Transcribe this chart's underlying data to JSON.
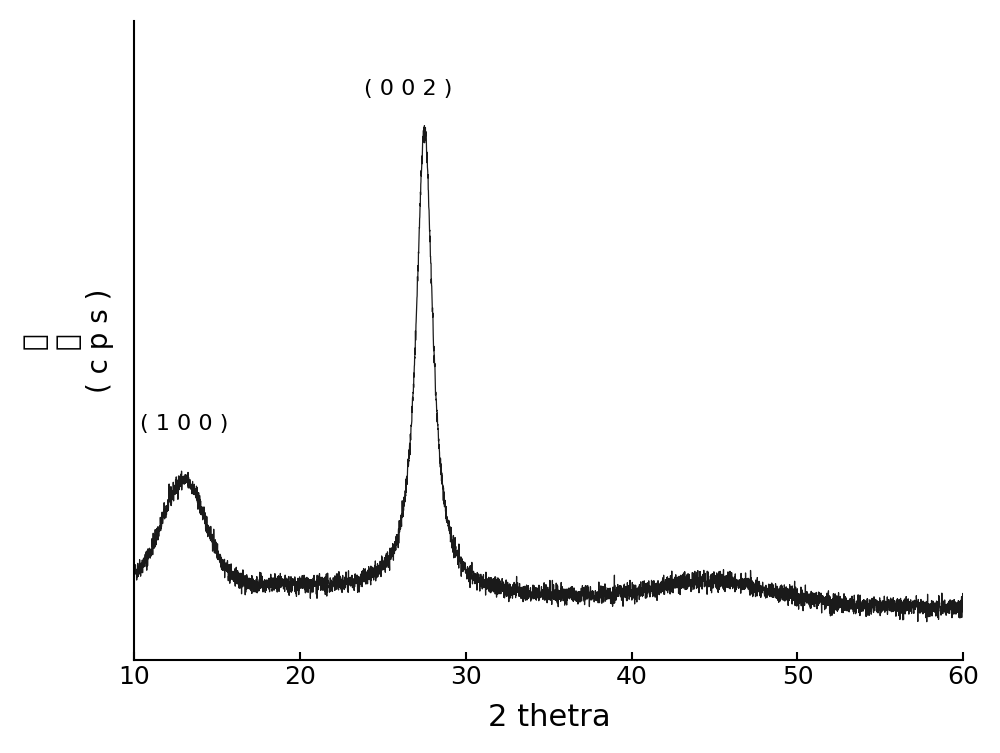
{
  "xlabel": "2 thetra",
  "ylabel_cps": "( c p s )",
  "ylabel_char1": "强",
  "ylabel_char2": "度",
  "xlim": [
    10,
    60
  ],
  "xticks": [
    10,
    20,
    30,
    40,
    50,
    60
  ],
  "xlabel_fontsize": 22,
  "ylabel_fontsize": 20,
  "tick_fontsize": 18,
  "annotation_002": "( 0 0 2 )",
  "annotation_100": "( 1 0 0 )",
  "line_color": "#1a1a1a",
  "line_width": 0.9,
  "background_color": "#ffffff",
  "noise_seed": 42
}
